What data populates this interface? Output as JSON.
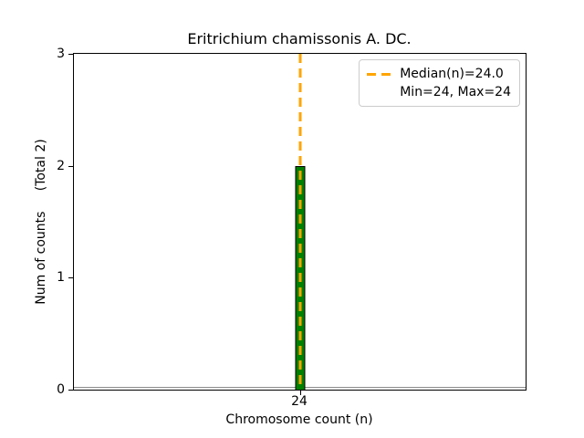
{
  "chart_data": {
    "type": "bar",
    "title": "Eritrichium chamissonis A. DC.",
    "xlabel": "Chromosome count (n)",
    "ylabel": "Num of counts     (Total 2)",
    "total_counts": 2,
    "categories": [
      "24"
    ],
    "values": [
      2
    ],
    "ylim": [
      0,
      3
    ],
    "ytick_values": [
      0,
      1,
      2,
      3
    ],
    "yticks": [
      "0",
      "1",
      "2",
      "3"
    ],
    "xticks": [
      "24"
    ],
    "median_value": 24.0,
    "min": 24,
    "max": 24,
    "grid": false,
    "legend": {
      "position": "upper right",
      "entries": [
        "Median(n)=24.0",
        "Min=24, Max=24"
      ]
    },
    "colors": {
      "bar_fill": "#008000",
      "bar_edge": "#000000",
      "median_line": "#FFA500",
      "axis": "#000000",
      "legend_border": "#cccccc",
      "baseline": "#8c8c8c"
    }
  }
}
